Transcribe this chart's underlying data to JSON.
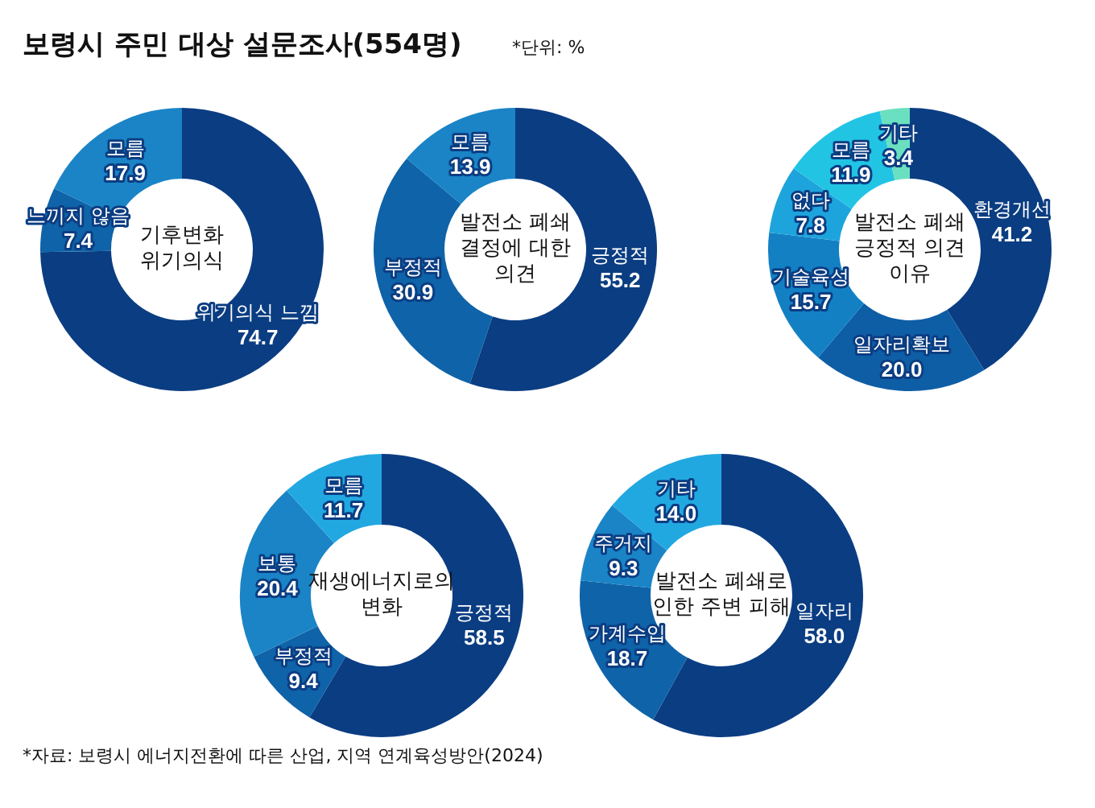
{
  "chart_data": [
    {
      "type": "other",
      "title": "보령시 주민 대상 설문조사(554명)",
      "subtitle": "*단위: %",
      "annotations": [
        "*자료: 보령시 에너지전환에 따른 산업, 지역 연계육성방안(2024)"
      ]
    },
    {
      "type": "donut",
      "title": "기후변화 위기의식",
      "categories": [
        "위기의식 느낌",
        "느끼지 않음",
        "모름"
      ],
      "values": [
        74.7,
        7.4,
        17.9
      ],
      "value_labels": [
        "74.7",
        "7.4",
        "17.9"
      ],
      "colors": [
        "#0b3d82",
        "#0f63a8",
        "#1a84c6"
      ]
    },
    {
      "type": "donut",
      "title": "발전소 폐쇄 결정에 대한 의견",
      "categories": [
        "긍정적",
        "부정적",
        "모름"
      ],
      "values": [
        55.2,
        30.9,
        13.9
      ],
      "value_labels": [
        "55.2",
        "30.9",
        "13.9"
      ],
      "colors": [
        "#0b3d82",
        "#0f63a8",
        "#1a84c6"
      ]
    },
    {
      "type": "donut",
      "title": "발전소 폐쇄 긍정적 의견 이유",
      "categories": [
        "환경개선",
        "일자리확보",
        "기술육성",
        "없다",
        "모름",
        "기타"
      ],
      "values": [
        41.2,
        20,
        15.7,
        7.8,
        11.9,
        3.4
      ],
      "value_labels": [
        "41.2",
        "20.0",
        "15.7",
        "7.8",
        "11.9",
        "3.4"
      ],
      "colors": [
        "#0b3d82",
        "#0e5ea6",
        "#1380c4",
        "#1ea4dc",
        "#22c4e4",
        "#6ae0c0"
      ]
    },
    {
      "type": "donut",
      "title": "재생에너지로의 변화",
      "categories": [
        "긍정적",
        "부정적",
        "보통",
        "모름"
      ],
      "values": [
        58.5,
        9.4,
        20.4,
        11.7
      ],
      "value_labels": [
        "58.5",
        "9.4",
        "20.4",
        "11.7"
      ],
      "colors": [
        "#0b3d82",
        "#0f63a8",
        "#1a84c6",
        "#22a8e0"
      ]
    },
    {
      "type": "donut",
      "title": "발전소 폐쇄로 인한 주변 피해",
      "categories": [
        "일자리",
        "가계수입",
        "주거지",
        "기타"
      ],
      "values": [
        58,
        18.7,
        9.3,
        14
      ],
      "value_labels": [
        "58.0",
        "18.7",
        "9.3",
        "14.0"
      ],
      "colors": [
        "#0b3d82",
        "#0f63a8",
        "#1a84c6",
        "#22a8e0"
      ]
    }
  ]
}
